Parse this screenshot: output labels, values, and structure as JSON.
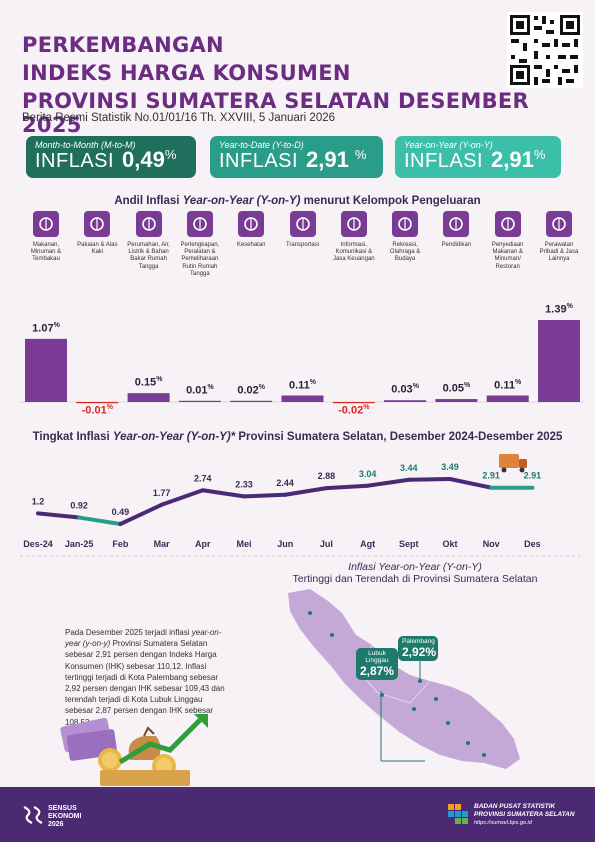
{
  "header": {
    "title_lines": [
      "PERKEMBANGAN",
      "INDEKS HARGA KONSUMEN",
      "PROVINSI SUMATERA SELATAN DESEMBER 2025"
    ],
    "subtitle": "Berita Resmi Statistik No.01/01/16 Th. XXVIII, 5 Januari 2026"
  },
  "cards": [
    {
      "label": "Month-to-Month (M-to-M)",
      "text": "INFLASI",
      "value": "0,49",
      "unit": "%",
      "color": "#1f6f5c"
    },
    {
      "label": "Year-to-Date (Y-to-D)",
      "text": "INFLASI",
      "value": "2,91",
      "unit": "%",
      "color": "#2a9d8a"
    },
    {
      "label": "Year-on-Year (Y-on-Y)",
      "text": "INFLASI",
      "value": "2,91",
      "unit": "%",
      "color": "#3cbfa8"
    }
  ],
  "andil": {
    "title_prefix": "Andil Inflasi ",
    "title_italic": "Year-on-Year (Y-on-Y)",
    "title_suffix": " menurut Kelompok Pengeluaran"
  },
  "trend": {
    "title_prefix": "Tingkat Inflasi ",
    "title_italic": "Year-on-Year (Y-on-Y)*",
    "title_suffix": " Provinsi Sumatera Selatan, Desember 2024-Desember 2025"
  },
  "map": {
    "title_italic": "Inflasi Year-on-Year (Y-on-Y)",
    "title_line2": "Tertinggi dan Terendah di Provinsi Sumatera Selatan",
    "callouts": [
      {
        "name": "Lubuk Linggau",
        "value": "2,87%"
      },
      {
        "name": "Palembang",
        "value": "2,92%"
      }
    ]
  },
  "description": {
    "p1": "Pada Desember 2025 terjadi inflasi ",
    "p1_italic": "year-on-year (y-on-y)",
    "p2": " Provinsi Sumatera Selatan sebesar 2,91 persen dengan Indeks Harga Konsumen (IHK) sebesar 110,12. Inflasi tertinggi terjadi di Kota Palembang sebesar 2,92 persen dengan IHK sebesar 109,43 dan terendah terjadi di Kota Lubuk Linggau sebesar 2,87 persen dengan IHK sebesar 108,52."
  },
  "footer": {
    "left": [
      "SENSUS",
      "EKONOMI",
      "2026"
    ],
    "right_1": "BADAN PUSAT STATISTIK",
    "right_2": "PROVINSI SUMATERA SELATAN",
    "url": "https://sumsel.bps.go.id"
  },
  "colors": {
    "bar": "#7a3b94",
    "line": "#4a2a73",
    "line_accent": "#2a9d8a",
    "negative": "#d62828"
  },
  "chart_data": [
    {
      "type": "bar",
      "categories": [
        "Makanan, Minuman & Tembakau",
        "Pakaian & Alas Kaki",
        "Perumahan, Air, Listrik & Bahan Bakar Rumah Tangga",
        "Perlengkapan, Peralatan & Pemeliharaan Rutin Rumah Tangga",
        "Kesehatan",
        "Transportasi",
        "Informasi, Komunikasi & Jasa Keuangan",
        "Rekreasi, Olahraga & Budaya",
        "Pendidikan",
        "Penyediaan Makanan & Minuman/ Restoran",
        "Perawatan Pribadi & Jasa Lainnya"
      ],
      "values": [
        1.07,
        -0.01,
        0.15,
        0.01,
        0.02,
        0.11,
        -0.02,
        0.03,
        0.05,
        0.11,
        1.39
      ],
      "labels": [
        "1.07",
        "-0.01",
        "0.15",
        "0.01",
        "0.02",
        "0.11",
        "-0.02",
        "0.03",
        "0.05",
        "0.11",
        "1.39"
      ],
      "unit": "%",
      "icons": [
        "food-icon",
        "clothing-icon",
        "house-icon",
        "appliance-icon",
        "health-icon",
        "transport-icon",
        "phone-icon",
        "recreation-icon",
        "education-icon",
        "restaurant-icon",
        "personal-care-icon"
      ]
    },
    {
      "type": "line",
      "x": [
        "Des-24",
        "Jan-25",
        "Feb",
        "Mar",
        "Apr",
        "Mei",
        "Jun",
        "Jul",
        "Agt",
        "Sept",
        "Okt",
        "Nov",
        "Des"
      ],
      "values": [
        1.2,
        0.92,
        0.49,
        1.77,
        2.74,
        2.33,
        2.44,
        2.88,
        3.04,
        3.44,
        3.49,
        2.91,
        2.91
      ],
      "labels": [
        "1.2",
        "0.92",
        "0.49",
        "1.77",
        "2.74",
        "2.33",
        "2.44",
        "2.88",
        "3.04",
        "3.44",
        "3.49",
        "2.91",
        "2.91"
      ]
    }
  ]
}
